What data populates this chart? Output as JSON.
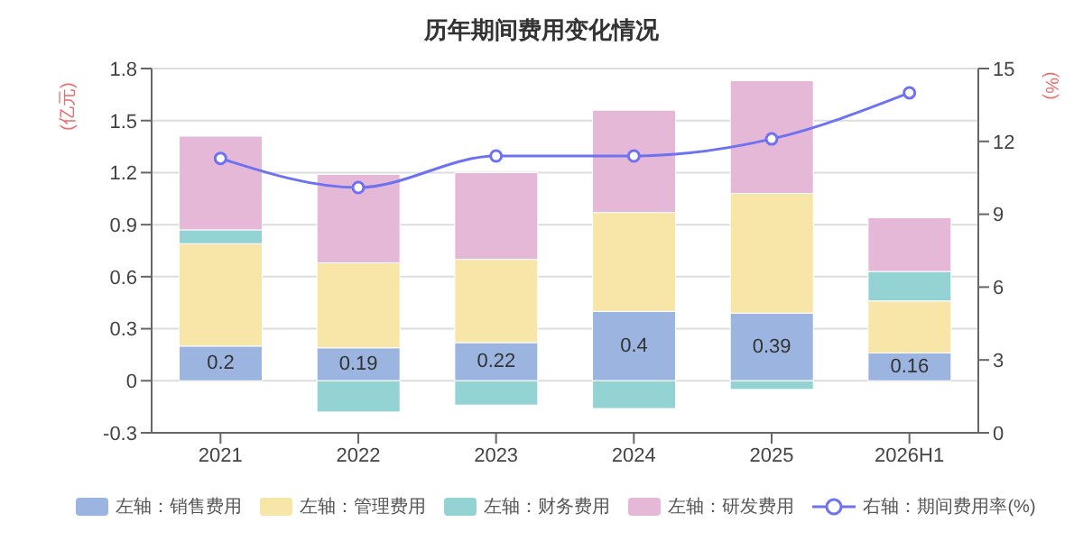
{
  "chart_data": {
    "type": "bar",
    "title": "历年期间费用变化情况",
    "ylabel": "(亿元)",
    "y2label": "(%)",
    "categories": [
      "2021",
      "2022",
      "2023",
      "2024",
      "2025",
      "2026H1"
    ],
    "stacked": true,
    "series": [
      {
        "name": "左轴：销售费用",
        "color": "#9bb5e0",
        "values": [
          0.2,
          0.19,
          0.22,
          0.4,
          0.39,
          0.16
        ],
        "value_labels": [
          "0.2",
          "0.19",
          "0.22",
          "0.4",
          "0.39",
          "0.16"
        ]
      },
      {
        "name": "左轴：管理费用",
        "color": "#f7e6a8",
        "values": [
          0.59,
          0.49,
          0.48,
          0.57,
          0.69,
          0.3
        ]
      },
      {
        "name": "左轴：财务费用",
        "color": "#94d3d3",
        "values": [
          0.08,
          -0.18,
          -0.14,
          -0.16,
          -0.05,
          0.17
        ]
      },
      {
        "name": "左轴：研发费用",
        "color": "#e6b8d8",
        "values": [
          0.54,
          0.51,
          0.5,
          0.59,
          0.65,
          0.31
        ]
      },
      {
        "name": "右轴：期间费用率(%)",
        "type": "line",
        "axis": "y2",
        "color": "#6e72f0",
        "marker": "circle",
        "values": [
          11.3,
          10.1,
          11.4,
          11.4,
          12.1,
          14.0
        ]
      }
    ],
    "ylim": [
      -0.3,
      1.8
    ],
    "yticks": [
      -0.3,
      0,
      0.3,
      0.6,
      0.9,
      1.2,
      1.5,
      1.8
    ],
    "y2lim": [
      0,
      15
    ],
    "y2ticks": [
      0,
      3,
      6,
      9,
      12,
      15
    ],
    "grid": "y",
    "legend": "bottom"
  }
}
